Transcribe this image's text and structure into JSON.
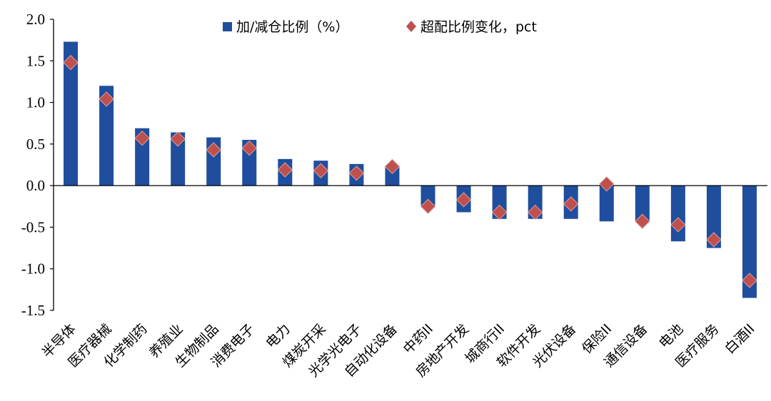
{
  "chart_data": {
    "type": "bar",
    "categories": [
      "半导体",
      "医疗器械",
      "化学制药",
      "养殖业",
      "生物制品",
      "消费电子",
      "电力",
      "煤炭开采",
      "光学光电子",
      "自动化设备",
      "中药II",
      "房地产开发",
      "城商行II",
      "软件开发",
      "光伏设备",
      "保险II",
      "通信设备",
      "电池",
      "医疗服务",
      "白酒II"
    ],
    "series": [
      {
        "name": "加/减仓比例（%）",
        "type": "bar",
        "color": "#1F4E9E",
        "values": [
          1.73,
          1.2,
          0.69,
          0.64,
          0.58,
          0.55,
          0.32,
          0.3,
          0.26,
          0.24,
          -0.25,
          -0.32,
          -0.4,
          -0.4,
          -0.4,
          -0.43,
          -0.43,
          -0.67,
          -0.75,
          -1.35
        ]
      },
      {
        "name": "超配比例变化，pct",
        "type": "scatter",
        "marker": "diamond",
        "color": "#C0504D",
        "values": [
          1.48,
          1.04,
          0.57,
          0.56,
          0.43,
          0.45,
          0.19,
          0.18,
          0.15,
          0.23,
          -0.25,
          -0.17,
          -0.32,
          -0.32,
          -0.22,
          0.02,
          -0.43,
          -0.47,
          -0.65,
          -1.14
        ]
      }
    ],
    "ylim": [
      -1.5,
      2.0
    ],
    "yticks": [
      "2.0",
      "1.5",
      "1.0",
      "0.5",
      "0.0",
      "-0.5",
      "-1.0",
      "-1.5"
    ],
    "ytick_values": [
      2.0,
      1.5,
      1.0,
      0.5,
      0.0,
      -0.5,
      -1.0,
      -1.5
    ],
    "title": "",
    "xlabel": "",
    "ylabel": "",
    "grid": false,
    "legend": "top-center"
  }
}
